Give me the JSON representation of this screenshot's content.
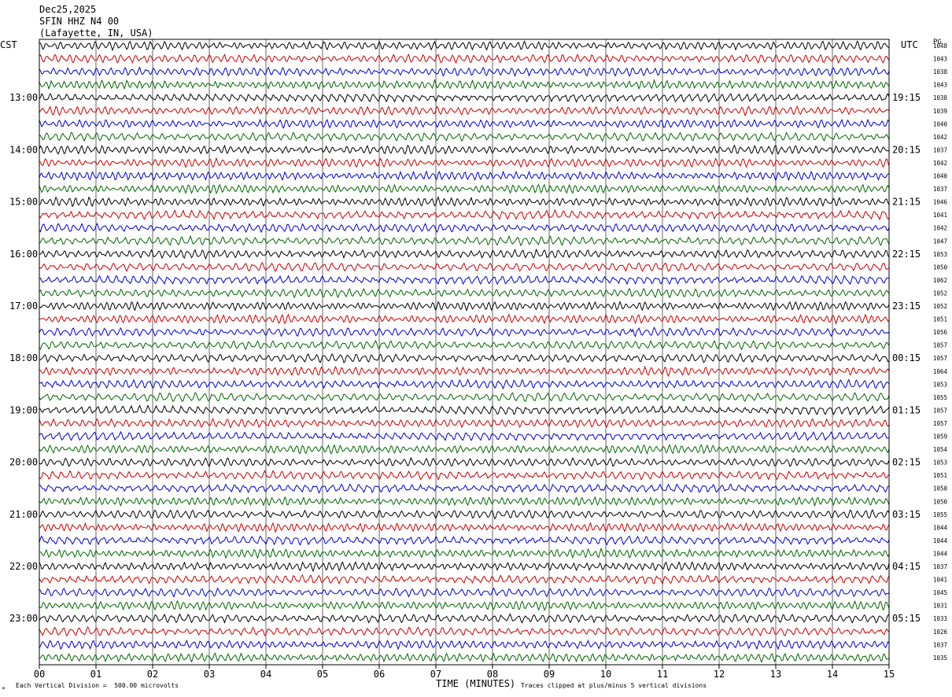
{
  "header": {
    "date": "Dec25,2025",
    "station": "SFIN HHZ N4 00",
    "location": "(Lafayette, IN, USA)"
  },
  "timezones": {
    "left": "CST",
    "right": "UTC",
    "extra": "PG"
  },
  "footer": {
    "scale_text": "Each Vertical Division =  500.00 microvolts",
    "xlabel": "TIME (MINUTES)",
    "clip_text": "Traces clipped at plus/minus 5 vertical divisions",
    "corner_mark": "»"
  },
  "chart_data": {
    "type": "line",
    "subtype": "helicorder",
    "xlabel": "TIME (MINUTES)",
    "xlim": [
      0,
      15
    ],
    "x_ticks": [
      "00",
      "01",
      "02",
      "03",
      "04",
      "05",
      "06",
      "07",
      "08",
      "09",
      "10",
      "11",
      "12",
      "13",
      "14",
      "15"
    ],
    "trace_colors": [
      "#000000",
      "#cc0000",
      "#0000cc",
      "#006600"
    ],
    "grid": "vertical lines at each minute",
    "trace_count": 48,
    "left_hour_labels": [
      "13:00",
      "14:00",
      "15:00",
      "16:00",
      "17:00",
      "18:00",
      "19:00",
      "20:00",
      "21:00",
      "22:00",
      "23:00"
    ],
    "right_hour_labels": [
      "19:15",
      "20:15",
      "21:15",
      "22:15",
      "23:15",
      "00:15",
      "01:15",
      "02:15",
      "03:15",
      "04:15",
      "05:15"
    ],
    "hour_label_first_trace": 4,
    "hour_label_every": 4,
    "trace_means": [
      "1048",
      "1043",
      "1038",
      "1043",
      "1038",
      "1039",
      "1040",
      "1042",
      "1037",
      "1042",
      "1040",
      "1037",
      "1046",
      "1041",
      "1042",
      "1047",
      "1053",
      "1050",
      "1062",
      "1052",
      "1052",
      "1051",
      "1056",
      "1057",
      "1057",
      "1064",
      "1053",
      "1055",
      "1057",
      "1057",
      "1059",
      "1054",
      "1053",
      "1051",
      "1050",
      "1050",
      "1055",
      "1044",
      "1044",
      "1044",
      "1037",
      "1041",
      "1045",
      "1031",
      "1033",
      "1026",
      "1037",
      "1035"
    ],
    "events": [
      {
        "trace": 22,
        "minute": 10.5,
        "description": "spike"
      }
    ]
  }
}
